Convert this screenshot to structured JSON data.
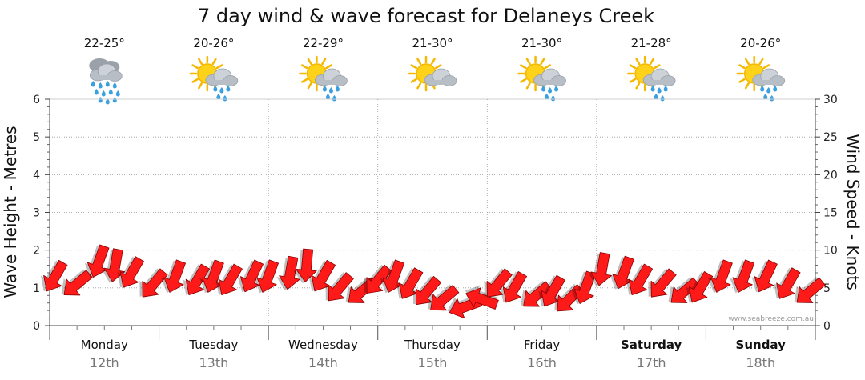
{
  "title": "7 day wind & wave forecast for Delaneys Creek",
  "credit": "www.seabreeze.com.au",
  "left_axis": {
    "label": "Wave Height - Metres",
    "range": [
      0,
      6
    ],
    "ticks": [
      "0",
      "1",
      "2",
      "3",
      "4",
      "5",
      "6"
    ]
  },
  "right_axis": {
    "label": "Wind Speed - Knots",
    "range": [
      0,
      30
    ],
    "ticks": [
      "0",
      "5",
      "10",
      "15",
      "20",
      "25",
      "30"
    ]
  },
  "days": [
    {
      "name": "Monday",
      "date": "12th",
      "temp": "22-25°",
      "icon": "rain-cloud-icon",
      "weekend": false
    },
    {
      "name": "Tuesday",
      "date": "13th",
      "temp": "20-26°",
      "icon": "sun-cloud-rain-icon",
      "weekend": false
    },
    {
      "name": "Wednesday",
      "date": "14th",
      "temp": "22-29°",
      "icon": "sun-cloud-rain-icon",
      "weekend": false
    },
    {
      "name": "Thursday",
      "date": "15th",
      "temp": "21-30°",
      "icon": "sun-cloud-icon",
      "weekend": false
    },
    {
      "name": "Friday",
      "date": "16th",
      "temp": "21-30°",
      "icon": "sun-cloud-rain-icon",
      "weekend": false
    },
    {
      "name": "Saturday",
      "date": "17th",
      "temp": "21-28°",
      "icon": "sun-cloud-rain-icon",
      "weekend": true
    },
    {
      "name": "Sunday",
      "date": "18th",
      "temp": "20-26°",
      "icon": "sun-cloud-rain-icon",
      "weekend": true
    }
  ],
  "colors": {
    "arrow": "#ff1a1a",
    "arrow_stroke": "#8a0000",
    "grid": "#9a9a9a",
    "sun": "#f5b800",
    "cloud": "#b8bec6",
    "rain": "#3aa0e0"
  },
  "chart_data": {
    "type": "line",
    "grid": true,
    "x_days": [
      "Monday 12th",
      "Tuesday 13th",
      "Wednesday 14th",
      "Thursday 15th",
      "Friday 16th",
      "Saturday 17th",
      "Sunday 18th"
    ],
    "series": [
      {
        "type": "wind-arrows",
        "axis": "right",
        "x_day": [
          0.05,
          0.25,
          0.45,
          0.6,
          0.75,
          0.95,
          1.15,
          1.35,
          1.5,
          1.65,
          1.85,
          2.0,
          2.2,
          2.35,
          2.5,
          2.65,
          2.85,
          3.0,
          3.15,
          3.3,
          3.45,
          3.6,
          3.8,
          3.95,
          4.1,
          4.25,
          4.45,
          4.6,
          4.75,
          4.9,
          5.05,
          5.25,
          5.4,
          5.6,
          5.8,
          5.95,
          6.15,
          6.35,
          6.55,
          6.75,
          6.95
        ],
        "wind_knots": [
          6.5,
          5.5,
          8.5,
          8.0,
          7.0,
          5.5,
          6.5,
          6.0,
          6.5,
          6.0,
          6.5,
          6.5,
          7.0,
          8.0,
          6.5,
          5.0,
          4.5,
          6.0,
          6.5,
          5.5,
          4.5,
          3.5,
          2.5,
          3.5,
          5.5,
          5.0,
          4.0,
          4.5,
          3.5,
          5.0,
          7.5,
          7.0,
          6.0,
          5.5,
          4.5,
          5.0,
          6.5,
          6.5,
          6.5,
          5.5,
          4.5
        ],
        "direction_deg": [
          120,
          140,
          110,
          100,
          120,
          130,
          110,
          120,
          110,
          120,
          115,
          110,
          100,
          95,
          120,
          130,
          140,
          130,
          110,
          120,
          130,
          140,
          160,
          200,
          130,
          120,
          140,
          120,
          135,
          110,
          100,
          110,
          120,
          130,
          140,
          120,
          110,
          110,
          115,
          120,
          140
        ]
      }
    ]
  }
}
